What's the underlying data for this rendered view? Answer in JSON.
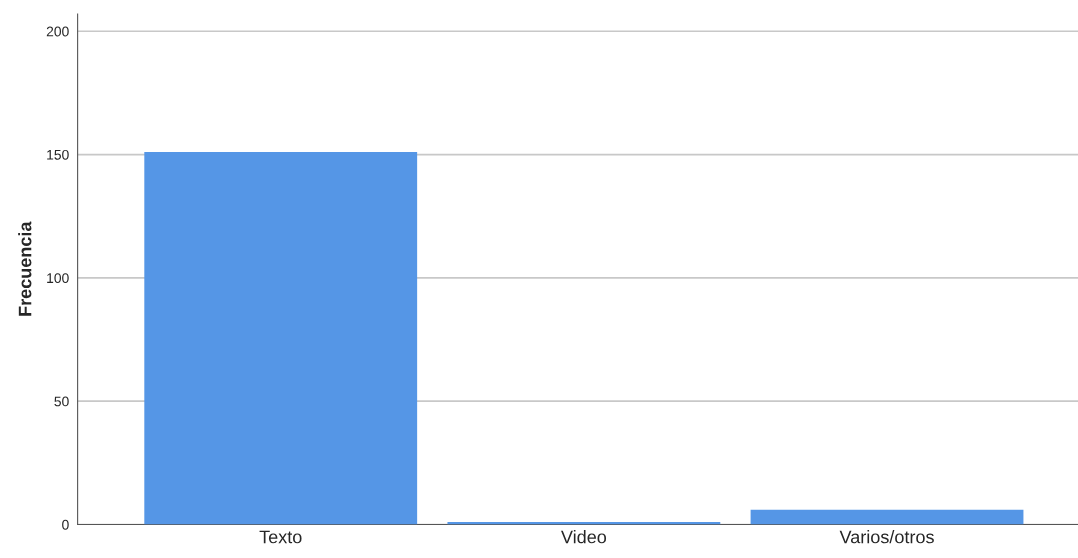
{
  "chart_data": {
    "type": "bar",
    "ylabel": "Frecuencia",
    "categories": [
      "Texto",
      "Video",
      "Varios/otros"
    ],
    "values": [
      151,
      1,
      6
    ],
    "color": "#5596e6",
    "ylim": [
      0,
      207
    ],
    "yticks": [
      0,
      50,
      100,
      150,
      200
    ],
    "grid": "y"
  }
}
